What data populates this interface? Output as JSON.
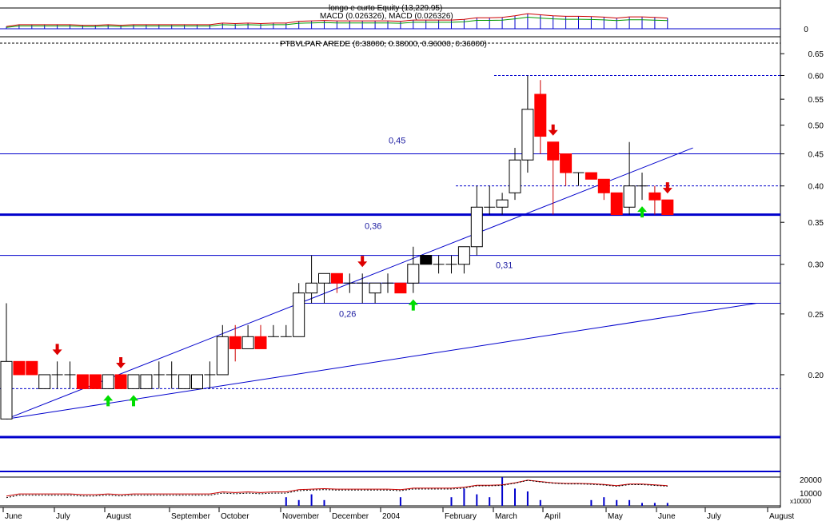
{
  "chart_data": {
    "type": "candlestick",
    "scale": "log",
    "ylim": [
      0.16,
      0.66
    ],
    "y_ticks": [
      "0.65",
      "0.60",
      "0.55",
      "0.50",
      "0.45",
      "0.40",
      "0.35",
      "0.30",
      "0.25",
      "0.20"
    ],
    "months": [
      "June",
      "July",
      "August",
      "September",
      "October",
      "November",
      "December",
      "2004",
      "February",
      "March",
      "April",
      "May",
      "June",
      "July",
      "August"
    ],
    "main_title": "PTBVLPAR AREDE (0.38000, 0.38000, 0.36000, 0.36000)",
    "macd_panel": {
      "line1": "longo e curto Equity (13,229.95)",
      "line2": "MACD (0.026326), MACD (0.026326)",
      "tick": "0"
    },
    "volume_panel": {
      "ticks": [
        "20000",
        "10000"
      ],
      "multiplier": "x10000"
    },
    "levels": [
      {
        "label": "0,45",
        "value": 0.45
      },
      {
        "label": "0,36",
        "value": 0.36
      },
      {
        "label": "0,31",
        "value": 0.31
      },
      {
        "label": "0,26",
        "value": 0.26
      }
    ],
    "extra_levels": [
      0.4,
      0.6,
      0.19,
      0.28
    ],
    "candles": [
      {
        "o": 0.21,
        "h": 0.26,
        "l": 0.17,
        "c": 0.17,
        "c2": "w"
      },
      {
        "o": 0.21,
        "h": 0.21,
        "l": 0.2,
        "c": 0.2,
        "c2": "r"
      },
      {
        "o": 0.21,
        "h": 0.21,
        "l": 0.2,
        "c": 0.2,
        "c2": "r"
      },
      {
        "o": 0.19,
        "h": 0.2,
        "l": 0.19,
        "c": 0.2,
        "c2": "w"
      },
      {
        "o": 0.2,
        "h": 0.21,
        "l": 0.19,
        "c": 0.2,
        "c2": "c"
      },
      {
        "o": 0.2,
        "h": 0.21,
        "l": 0.19,
        "c": 0.2,
        "c2": "c"
      },
      {
        "o": 0.2,
        "h": 0.2,
        "l": 0.19,
        "c": 0.19,
        "c2": "r"
      },
      {
        "o": 0.2,
        "h": 0.2,
        "l": 0.19,
        "c": 0.19,
        "c2": "r"
      },
      {
        "o": 0.19,
        "h": 0.2,
        "l": 0.19,
        "c": 0.2,
        "c2": "w"
      },
      {
        "o": 0.2,
        "h": 0.2,
        "l": 0.19,
        "c": 0.19,
        "c2": "r"
      },
      {
        "o": 0.19,
        "h": 0.2,
        "l": 0.19,
        "c": 0.2,
        "c2": "w"
      },
      {
        "o": 0.19,
        "h": 0.2,
        "l": 0.19,
        "c": 0.2,
        "c2": "w"
      },
      {
        "o": 0.2,
        "h": 0.21,
        "l": 0.19,
        "c": 0.2,
        "c2": "c"
      },
      {
        "o": 0.2,
        "h": 0.21,
        "l": 0.19,
        "c": 0.2,
        "c2": "c"
      },
      {
        "o": 0.19,
        "h": 0.2,
        "l": 0.19,
        "c": 0.2,
        "c2": "w"
      },
      {
        "o": 0.19,
        "h": 0.2,
        "l": 0.19,
        "c": 0.2,
        "c2": "w"
      },
      {
        "o": 0.2,
        "h": 0.21,
        "l": 0.19,
        "c": 0.2,
        "c2": "c"
      },
      {
        "o": 0.2,
        "h": 0.24,
        "l": 0.2,
        "c": 0.23,
        "c2": "w"
      },
      {
        "o": 0.23,
        "h": 0.24,
        "l": 0.21,
        "c": 0.22,
        "c2": "r"
      },
      {
        "o": 0.22,
        "h": 0.24,
        "l": 0.22,
        "c": 0.23,
        "c2": "w"
      },
      {
        "o": 0.23,
        "h": 0.24,
        "l": 0.22,
        "c": 0.22,
        "c2": "r"
      },
      {
        "o": 0.23,
        "h": 0.24,
        "l": 0.23,
        "c": 0.23,
        "c2": "c"
      },
      {
        "o": 0.23,
        "h": 0.24,
        "l": 0.23,
        "c": 0.23,
        "c2": "c"
      },
      {
        "o": 0.23,
        "h": 0.28,
        "l": 0.23,
        "c": 0.27,
        "c2": "w"
      },
      {
        "o": 0.27,
        "h": 0.31,
        "l": 0.26,
        "c": 0.28,
        "c2": "w"
      },
      {
        "o": 0.28,
        "h": 0.29,
        "l": 0.26,
        "c": 0.29,
        "c2": "w"
      },
      {
        "o": 0.29,
        "h": 0.29,
        "l": 0.27,
        "c": 0.28,
        "c2": "r"
      },
      {
        "o": 0.28,
        "h": 0.29,
        "l": 0.27,
        "c": 0.28,
        "c2": "c"
      },
      {
        "o": 0.28,
        "h": 0.29,
        "l": 0.26,
        "c": 0.28,
        "c2": "c"
      },
      {
        "o": 0.27,
        "h": 0.28,
        "l": 0.26,
        "c": 0.28,
        "c2": "w"
      },
      {
        "o": 0.28,
        "h": 0.29,
        "l": 0.27,
        "c": 0.28,
        "c2": "c"
      },
      {
        "o": 0.28,
        "h": 0.28,
        "l": 0.27,
        "c": 0.27,
        "c2": "r"
      },
      {
        "o": 0.28,
        "h": 0.32,
        "l": 0.27,
        "c": 0.3,
        "c2": "w"
      },
      {
        "o": 0.31,
        "h": 0.31,
        "l": 0.3,
        "c": 0.3,
        "c2": "b"
      },
      {
        "o": 0.3,
        "h": 0.31,
        "l": 0.29,
        "c": 0.3,
        "c2": "c"
      },
      {
        "o": 0.3,
        "h": 0.31,
        "l": 0.29,
        "c": 0.3,
        "c2": "c"
      },
      {
        "o": 0.3,
        "h": 0.32,
        "l": 0.29,
        "c": 0.32,
        "c2": "w"
      },
      {
        "o": 0.32,
        "h": 0.4,
        "l": 0.31,
        "c": 0.37,
        "c2": "w"
      },
      {
        "o": 0.37,
        "h": 0.4,
        "l": 0.36,
        "c": 0.37,
        "c2": "c"
      },
      {
        "o": 0.37,
        "h": 0.39,
        "l": 0.36,
        "c": 0.38,
        "c2": "w"
      },
      {
        "o": 0.39,
        "h": 0.46,
        "l": 0.38,
        "c": 0.44,
        "c2": "w"
      },
      {
        "o": 0.44,
        "h": 0.6,
        "l": 0.42,
        "c": 0.53,
        "c2": "w"
      },
      {
        "o": 0.56,
        "h": 0.59,
        "l": 0.45,
        "c": 0.48,
        "c2": "r"
      },
      {
        "o": 0.47,
        "h": 0.47,
        "l": 0.36,
        "c": 0.44,
        "c2": "r"
      },
      {
        "o": 0.45,
        "h": 0.45,
        "l": 0.4,
        "c": 0.42,
        "c2": "r"
      },
      {
        "o": 0.42,
        "h": 0.42,
        "l": 0.4,
        "c": 0.42,
        "c2": "c"
      },
      {
        "o": 0.42,
        "h": 0.42,
        "l": 0.41,
        "c": 0.41,
        "c2": "r"
      },
      {
        "o": 0.41,
        "h": 0.41,
        "l": 0.38,
        "c": 0.39,
        "c2": "r"
      },
      {
        "o": 0.39,
        "h": 0.39,
        "l": 0.36,
        "c": 0.36,
        "c2": "r"
      },
      {
        "o": 0.37,
        "h": 0.47,
        "l": 0.36,
        "c": 0.4,
        "c2": "w"
      },
      {
        "o": 0.4,
        "h": 0.42,
        "l": 0.38,
        "c": 0.4,
        "c2": "c"
      },
      {
        "o": 0.39,
        "h": 0.4,
        "l": 0.36,
        "c": 0.38,
        "c2": "r"
      },
      {
        "o": 0.38,
        "h": 0.38,
        "l": 0.36,
        "c": 0.36,
        "c2": "r"
      }
    ],
    "up_arrows": [
      8,
      10,
      32,
      50
    ],
    "down_arrows": [
      4,
      9,
      28,
      43,
      52
    ],
    "trendlines": [
      {
        "i0": 0,
        "v0": 0.17,
        "i1": 54,
        "v1": 0.46
      },
      {
        "i0": 0,
        "v0": 0.17,
        "i1": 59,
        "v1": 0.26
      }
    ],
    "volume": [
      0,
      0,
      0,
      0,
      0,
      0,
      0,
      0,
      0,
      0,
      0,
      0,
      0,
      0,
      0,
      0,
      0,
      0,
      0,
      0,
      0,
      0,
      0.3,
      0.2,
      0.4,
      0.2,
      0,
      0,
      0,
      0,
      0,
      0.3,
      0,
      0,
      0,
      0.3,
      0.6,
      0.4,
      0.3,
      1.0,
      0.6,
      0.5,
      0.2,
      0,
      0,
      0,
      0.2,
      0.3,
      0.2,
      0.2,
      0.1,
      0.1,
      0.1
    ]
  }
}
